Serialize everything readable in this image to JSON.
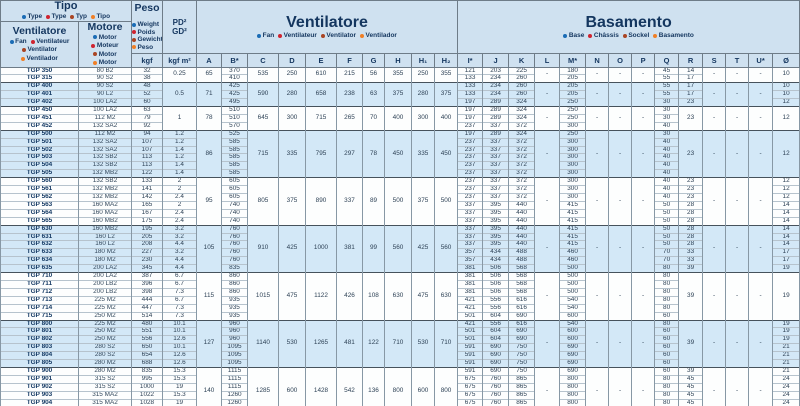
{
  "header": {
    "tipo": {
      "title": "Tipo",
      "langs": [
        {
          "label": "Type",
          "color": "#1b6cb5"
        },
        {
          "label": "Type",
          "color": "#cf2430"
        },
        {
          "label": "Typ",
          "color": "#aa4524"
        },
        {
          "label": "Tipo",
          "color": "#f07f26"
        }
      ]
    },
    "fan_col": {
      "title": "Ventilatore",
      "langs": [
        {
          "label": "Fan",
          "color": "#1b6cb5"
        },
        {
          "label": "Ventilateur",
          "color": "#cf2430"
        },
        {
          "label": "Ventilator",
          "color": "#aa4524"
        },
        {
          "label": "Ventilador",
          "color": "#f07f26"
        }
      ]
    },
    "motor_col": {
      "title": "Motore",
      "langs": [
        {
          "label": "Motor",
          "color": "#1b6cb5"
        },
        {
          "label": "Moteur",
          "color": "#cf2430"
        },
        {
          "label": "Motor",
          "color": "#aa4524"
        },
        {
          "label": "Motor",
          "color": "#f07f26"
        }
      ]
    },
    "peso": {
      "title": "Peso",
      "langs": [
        {
          "label": "Weight",
          "color": "#1b6cb5"
        },
        {
          "label": "Poids",
          "color": "#cf2430"
        },
        {
          "label": "Gewicht",
          "color": "#aa4524"
        },
        {
          "label": "Peso",
          "color": "#f07f26"
        }
      ]
    },
    "pd": {
      "line1": "PD²",
      "line2": "GD²"
    },
    "units": {
      "weight": "kgf",
      "inertia": "kgf m²"
    },
    "ventilatore": {
      "title": "Ventilatore",
      "langs": [
        {
          "label": "Fan",
          "color": "#1b6cb5"
        },
        {
          "label": "Ventilateur",
          "color": "#cf2430"
        },
        {
          "label": "Ventilator",
          "color": "#aa4524"
        },
        {
          "label": "Ventilador",
          "color": "#f07f26"
        }
      ]
    },
    "basamento": {
      "title": "Basamento",
      "langs": [
        {
          "label": "Base",
          "color": "#1b6cb5"
        },
        {
          "label": "Châssis",
          "color": "#cf2430"
        },
        {
          "label": "Sockel",
          "color": "#aa4524"
        },
        {
          "label": "Basamento",
          "color": "#f07f26"
        }
      ]
    },
    "vent_cols": [
      "A",
      "B*",
      "C",
      "D",
      "E",
      "F",
      "G",
      "H",
      "H₁",
      "H₂"
    ],
    "bas_cols": [
      "I*",
      "J",
      "K",
      "L",
      "M*",
      "N",
      "O",
      "P",
      "Q",
      "R",
      "S",
      "T",
      "U*",
      "Ø"
    ]
  },
  "table": {
    "column_keys": [
      "model",
      "motor",
      "kgf",
      "pd",
      "a",
      "b",
      "c",
      "d",
      "e",
      "f",
      "g",
      "h",
      "h1",
      "h2",
      "i",
      "j",
      "k",
      "l",
      "m",
      "n",
      "o",
      "p",
      "q",
      "r",
      "s",
      "t",
      "u",
      "dia"
    ],
    "groups": [
      {
        "shaded": false,
        "cols": {
          "model": [
            "TGP 350",
            "TGP 315"
          ],
          "motor": [
            "80 B2",
            "90 S2"
          ],
          "kgf": [
            "32",
            "38"
          ],
          "pd": "0.25",
          "a": "65",
          "b": [
            "370",
            "410"
          ],
          "c": "535",
          "d": "250",
          "e": "610",
          "f": "215",
          "g": "56",
          "h": "355",
          "h1": "250",
          "h2": "355",
          "i": [
            "121",
            "133"
          ],
          "j": [
            "203",
            "234"
          ],
          "k": [
            "225",
            "260"
          ],
          "l": "-",
          "m": [
            "180",
            "205"
          ],
          "n": "-",
          "o": "-",
          "p": "-",
          "q": [
            "45",
            "55"
          ],
          "r": [
            "14",
            "17"
          ],
          "s": "-",
          "t": "-",
          "u": "-",
          "dia": "10"
        }
      },
      {
        "shaded": true,
        "cols": {
          "model": [
            "TGP 400",
            "TGP 401",
            "TGP 402"
          ],
          "motor": [
            "90 S2",
            "90 L2",
            "100 LA2"
          ],
          "kgf": [
            "48",
            "52",
            "60"
          ],
          "pd": "0.5",
          "a": "71",
          "b": [
            "425",
            "425",
            "495"
          ],
          "c": "590",
          "d": "280",
          "e": "658",
          "f": "238",
          "g": "63",
          "h": "375",
          "h1": "280",
          "h2": "375",
          "i": [
            "133",
            "133",
            "197"
          ],
          "j": [
            "234",
            "234",
            "289"
          ],
          "k": [
            "260",
            "260",
            "324"
          ],
          "l": "-",
          "m": [
            "205",
            "205",
            "250"
          ],
          "n": "-",
          "o": "-",
          "p": "-",
          "q": [
            "55",
            "55",
            "30"
          ],
          "r": [
            "17",
            "17",
            "23"
          ],
          "s": "-",
          "t": "-",
          "u": "-",
          "dia": [
            "10",
            "10",
            "12"
          ]
        }
      },
      {
        "shaded": false,
        "cols": {
          "model": [
            "TGP 450",
            "TGP 451",
            "TGP 452"
          ],
          "motor": [
            "100 LA2",
            "112 M2",
            "132 SA2"
          ],
          "kgf": [
            "63",
            "79",
            "92"
          ],
          "pd": "1",
          "a": "78",
          "b": [
            "510",
            "510",
            "570"
          ],
          "c": "645",
          "d": "300",
          "e": "715",
          "f": "265",
          "g": "70",
          "h": "400",
          "h1": "300",
          "h2": "400",
          "i": [
            "197",
            "197",
            "237"
          ],
          "j": [
            "289",
            "289",
            "337"
          ],
          "k": [
            "324",
            "324",
            "372"
          ],
          "l": "-",
          "m": [
            "250",
            "250",
            "300"
          ],
          "n": "-",
          "o": "-",
          "p": "-",
          "q": [
            "30",
            "30",
            "40"
          ],
          "r": "23",
          "s": "-",
          "t": "-",
          "u": "-",
          "dia": "12"
        }
      },
      {
        "shaded": true,
        "cols": {
          "model": [
            "TGP 500",
            "TGP 501",
            "TGP 502",
            "TGP 503",
            "TGP 504",
            "TGP 505"
          ],
          "motor": [
            "112 M2",
            "132 SA2",
            "132 SA2",
            "132 SB2",
            "132 SB2",
            "132 MB2"
          ],
          "kgf": [
            "94",
            "107",
            "107",
            "113",
            "113",
            "122"
          ],
          "pd": [
            "1.2",
            "1.2",
            "1.4",
            "1.2",
            "1.4",
            "1.4"
          ],
          "a": "86",
          "b": [
            "525",
            "585",
            "585",
            "585",
            "585",
            "585"
          ],
          "c": "715",
          "d": "335",
          "e": "795",
          "f": "297",
          "g": "78",
          "h": "450",
          "h1": "335",
          "h2": "450",
          "i": [
            "197",
            "237",
            "237",
            "237",
            "237",
            "237"
          ],
          "j": [
            "289",
            "337",
            "337",
            "337",
            "337",
            "337"
          ],
          "k": [
            "324",
            "372",
            "372",
            "372",
            "372",
            "372"
          ],
          "l": "-",
          "m": [
            "250",
            "300",
            "300",
            "300",
            "300",
            "300"
          ],
          "n": "-",
          "o": "-",
          "p": "-",
          "q": [
            "30",
            "40",
            "40",
            "40",
            "40",
            "40"
          ],
          "r": "23",
          "s": "-",
          "t": "-",
          "u": "-",
          "dia": "12"
        }
      },
      {
        "shaded": false,
        "cols": {
          "model": [
            "TGP 560",
            "TGP 561",
            "TGP 562",
            "TGP 563",
            "TGP 564",
            "TGP 565"
          ],
          "motor": [
            "132 SB2",
            "132 MB2",
            "132 MB2",
            "160 MA2",
            "160 MA2",
            "160 MB2"
          ],
          "kgf": [
            "133",
            "141",
            "142",
            "165",
            "167",
            "175"
          ],
          "pd": [
            "2",
            "2",
            "2.4",
            "2",
            "2.4",
            "2.4"
          ],
          "a": "95",
          "b": [
            "605",
            "605",
            "605",
            "740",
            "740",
            "740"
          ],
          "c": "805",
          "d": "375",
          "e": "890",
          "f": "337",
          "g": "89",
          "h": "500",
          "h1": "375",
          "h2": "500",
          "i": [
            "237",
            "237",
            "237",
            "337",
            "337",
            "337"
          ],
          "j": [
            "337",
            "337",
            "337",
            "395",
            "395",
            "395"
          ],
          "k": [
            "372",
            "372",
            "372",
            "440",
            "440",
            "440"
          ],
          "l": "-",
          "m": [
            "300",
            "300",
            "300",
            "415",
            "415",
            "415"
          ],
          "n": "-",
          "o": "-",
          "p": "-",
          "q": [
            "40",
            "40",
            "40",
            "50",
            "50",
            "50"
          ],
          "r": [
            "23",
            "23",
            "23",
            "28",
            "28",
            "28"
          ],
          "s": "-",
          "t": "-",
          "u": "-",
          "dia": [
            "12",
            "12",
            "12",
            "14",
            "14",
            "14"
          ]
        }
      },
      {
        "shaded": true,
        "cols": {
          "model": [
            "TGP 630",
            "TGP 631",
            "TGP 632",
            "TGP 633",
            "TGP 634",
            "TGP 635"
          ],
          "motor": [
            "160 MB2",
            "160 L2",
            "160 L2",
            "180 M2",
            "180 M2",
            "200 LA2"
          ],
          "kgf": [
            "195",
            "205",
            "208",
            "227",
            "230",
            "345"
          ],
          "pd": [
            "3.2",
            "3.2",
            "4.4",
            "3.2",
            "4.4",
            "4.4"
          ],
          "a": "105",
          "b": [
            "760",
            "760",
            "760",
            "760",
            "760",
            "835"
          ],
          "c": "910",
          "d": "425",
          "e": "1000",
          "f": "381",
          "g": "99",
          "h": "560",
          "h1": "425",
          "h2": "560",
          "i": [
            "337",
            "337",
            "337",
            "357",
            "357",
            "381"
          ],
          "j": [
            "395",
            "395",
            "395",
            "434",
            "434",
            "506"
          ],
          "k": [
            "440",
            "440",
            "440",
            "488",
            "488",
            "568"
          ],
          "l": "-",
          "m": [
            "415",
            "415",
            "415",
            "460",
            "460",
            "500"
          ],
          "n": "-",
          "o": "-",
          "p": "-",
          "q": [
            "50",
            "50",
            "50",
            "70",
            "70",
            "80"
          ],
          "r": [
            "28",
            "28",
            "28",
            "33",
            "33",
            "39"
          ],
          "s": "-",
          "t": "-",
          "u": "-",
          "dia": [
            "14",
            "14",
            "14",
            "17",
            "17",
            "19"
          ]
        }
      },
      {
        "shaded": false,
        "cols": {
          "model": [
            "TGP 710",
            "TGP 711",
            "TGP 712",
            "TGP 713",
            "TGP 714",
            "TGP 715"
          ],
          "motor": [
            "200 LA2",
            "200 LB2",
            "200 LB2",
            "225 M2",
            "225 M2",
            "250 M2"
          ],
          "kgf": [
            "387",
            "396",
            "398",
            "444",
            "447",
            "514"
          ],
          "pd": [
            "6.7",
            "6.7",
            "7.3",
            "6.7",
            "7.3",
            "7.3"
          ],
          "a": "115",
          "b": [
            "860",
            "860",
            "860",
            "935",
            "935",
            "935"
          ],
          "c": "1015",
          "d": "475",
          "e": "1122",
          "f": "426",
          "g": "108",
          "h": "630",
          "h1": "475",
          "h2": "630",
          "i": [
            "381",
            "381",
            "381",
            "421",
            "421",
            "501"
          ],
          "j": [
            "506",
            "506",
            "506",
            "556",
            "556",
            "604"
          ],
          "k": [
            "568",
            "568",
            "568",
            "616",
            "616",
            "690"
          ],
          "l": "-",
          "m": [
            "500",
            "500",
            "500",
            "540",
            "540",
            "600"
          ],
          "n": "-",
          "o": "-",
          "p": "-",
          "q": [
            "80",
            "80",
            "80",
            "80",
            "80",
            "60"
          ],
          "r": "39",
          "s": "-",
          "t": "-",
          "u": "-",
          "dia": "19"
        }
      },
      {
        "shaded": true,
        "cols": {
          "model": [
            "TGP 800",
            "TGP 801",
            "TGP 802",
            "TGP 803",
            "TGP 804",
            "TGP 805"
          ],
          "motor": [
            "225 M2",
            "250 M2",
            "250 M2",
            "280 S2",
            "280 S2",
            "280 M2"
          ],
          "kgf": [
            "480",
            "551",
            "556",
            "650",
            "654",
            "688"
          ],
          "pd": [
            "10.1",
            "10.1",
            "12.6",
            "10.1",
            "12.6",
            "12.6"
          ],
          "a": "127",
          "b": [
            "960",
            "960",
            "960",
            "1095",
            "1095",
            "1095"
          ],
          "c": "1140",
          "d": "530",
          "e": "1265",
          "f": "481",
          "g": "122",
          "h": "710",
          "h1": "530",
          "h2": "710",
          "i": [
            "421",
            "501",
            "501",
            "591",
            "591",
            "591"
          ],
          "j": [
            "556",
            "604",
            "604",
            "690",
            "690",
            "690"
          ],
          "k": [
            "616",
            "690",
            "690",
            "750",
            "750",
            "750"
          ],
          "l": "-",
          "m": [
            "540",
            "600",
            "600",
            "690",
            "690",
            "690"
          ],
          "n": "-",
          "o": "-",
          "p": "-",
          "q": [
            "80",
            "60",
            "60",
            "60",
            "60",
            "60"
          ],
          "r": "39",
          "s": "-",
          "t": "-",
          "u": "-",
          "dia": [
            "19",
            "19",
            "19",
            "21",
            "21",
            "21"
          ]
        }
      },
      {
        "shaded": false,
        "cols": {
          "model": [
            "TGP 900",
            "TGP 901",
            "TGP 902",
            "TGP 903",
            "TGP 904",
            "TGP 905"
          ],
          "motor": [
            "280 M2",
            "315 S2",
            "315 S2",
            "315 MA2",
            "315 MA2",
            "315 MC2"
          ],
          "kgf": [
            "835",
            "995",
            "1000",
            "1022",
            "1028",
            "1101"
          ],
          "pd": [
            "15.3",
            "15.3",
            "19",
            "15.3",
            "19",
            "19"
          ],
          "a": "140",
          "b": [
            "1115",
            "1115",
            "1115",
            "1260",
            "1260",
            "1260"
          ],
          "c": "1285",
          "d": "600",
          "e": "1428",
          "f": "542",
          "g": "136",
          "h": "800",
          "h1": "600",
          "h2": "800",
          "i": [
            "591",
            "675",
            "675",
            "675",
            "675",
            "675"
          ],
          "j": [
            "690",
            "760",
            "760",
            "760",
            "760",
            "760"
          ],
          "k": [
            "750",
            "865",
            "865",
            "865",
            "865",
            "865"
          ],
          "l": "-",
          "m": [
            "690",
            "800",
            "800",
            "800",
            "800",
            "800"
          ],
          "n": "-",
          "o": "-",
          "p": "-",
          "q": [
            "60",
            "80",
            "80",
            "80",
            "80",
            "80"
          ],
          "r": [
            "39",
            "45",
            "45",
            "45",
            "45",
            "45"
          ],
          "s": "-",
          "t": "-",
          "u": "-",
          "dia": [
            "21",
            "24",
            "24",
            "24",
            "24",
            "24"
          ]
        }
      }
    ]
  }
}
